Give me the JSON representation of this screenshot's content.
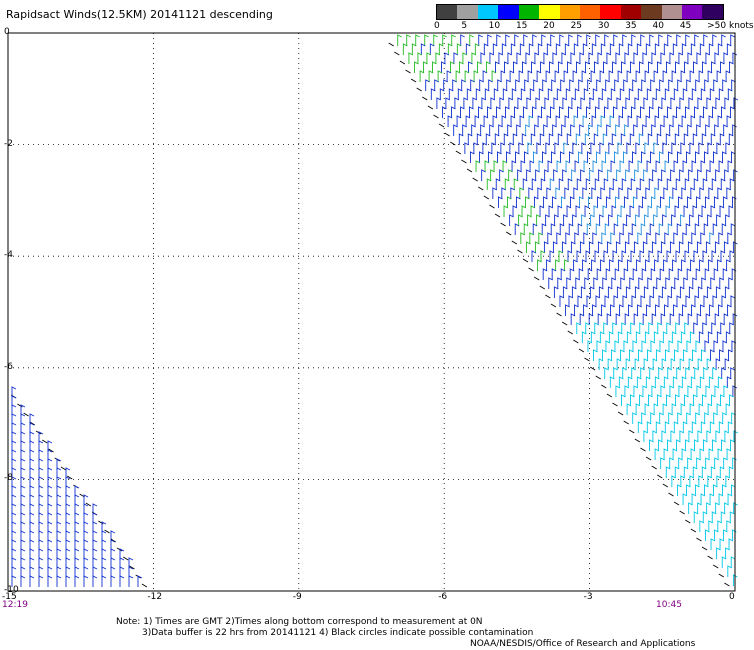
{
  "title": "Rapidsact Winds(12.5KM) 20141121 descending",
  "legend": {
    "colors": [
      "#404040",
      "#a0a0a0",
      "#00c8ff",
      "#0000ff",
      "#00b400",
      "#ffff00",
      "#ffa000",
      "#ff6000",
      "#ff0000",
      "#a00000",
      "#6b3a1f",
      "#b09090",
      "#8000c0",
      "#300060"
    ],
    "labels": [
      "0",
      "5",
      "10",
      "15",
      "20",
      "25",
      "30",
      "35",
      "40",
      "45",
      ">50 knots"
    ]
  },
  "axes": {
    "x_ticks": [
      "-15",
      "-12",
      "-9",
      "-6",
      "-3",
      "0"
    ],
    "y_ticks": [
      "0",
      "-2",
      "-4",
      "-6",
      "-8",
      "-10"
    ],
    "x_range": [
      -15,
      0
    ],
    "y_range": [
      -10,
      0
    ]
  },
  "times": {
    "left": "12:19",
    "right": "10:45"
  },
  "notes": {
    "line1": "Note: 1) Times are GMT 2)Times along bottom correspond to measurement at 0N",
    "line2": "3)Data buffer is 22 hrs from 20141121 4) Black circles indicate possible contamination",
    "line3": "NOAA/NESDIS/Office of Research and Applications"
  }
}
